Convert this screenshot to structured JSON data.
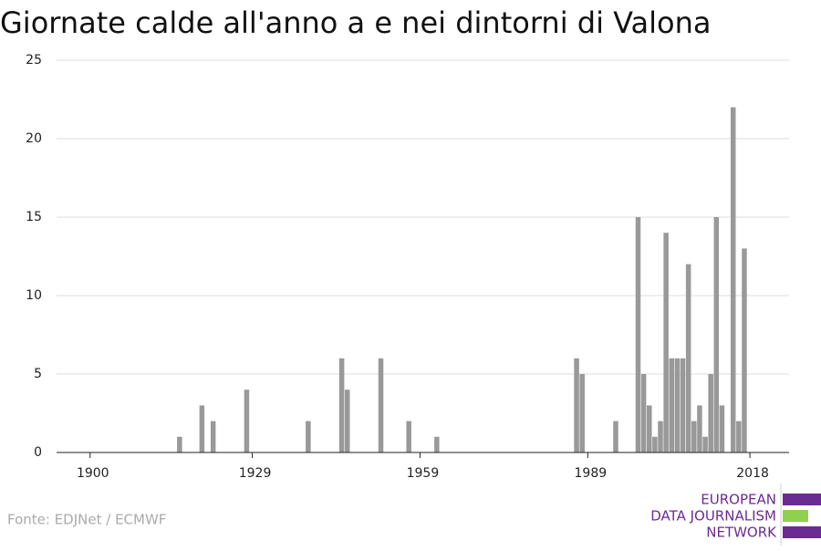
{
  "chart_data": {
    "type": "bar",
    "title": "Giornate calde all'anno a e nei dintorni di Valona",
    "x": [
      1916,
      1920,
      1922,
      1928,
      1939,
      1945,
      1946,
      1952,
      1957,
      1962,
      1987,
      1988,
      1994,
      1998,
      1999,
      2000,
      2001,
      2002,
      2003,
      2004,
      2005,
      2006,
      2007,
      2008,
      2009,
      2010,
      2011,
      2012,
      2013,
      2015,
      2016,
      2017
    ],
    "values": [
      1,
      3,
      2,
      4,
      2,
      6,
      4,
      6,
      2,
      1,
      6,
      5,
      2,
      15,
      5,
      3,
      1,
      2,
      14,
      6,
      6,
      6,
      12,
      2,
      3,
      1,
      5,
      15,
      3,
      22,
      2,
      13
    ],
    "color": "#999999",
    "xlim": [
      1894,
      2025
    ],
    "xticks": [
      1900,
      1929,
      1959,
      1989,
      2018
    ],
    "ylim": [
      0,
      25
    ],
    "yticks": [
      0,
      5,
      10,
      15,
      20,
      25
    ],
    "grid": true,
    "source": "Fonte: EDJNet / ECMWF",
    "logo": [
      "EUROPEAN",
      "DATA JOURNALISM",
      "NETWORK"
    ]
  }
}
